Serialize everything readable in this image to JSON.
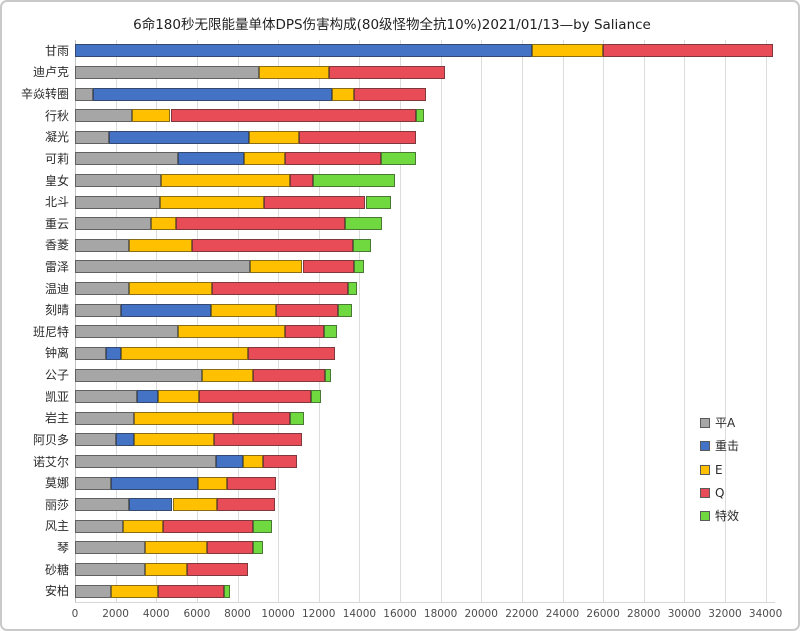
{
  "title": "6命180秒无限能量单体DPS伤害构成(80级怪物全抗10%)2021/01/13—by Saliance",
  "colors": {
    "normal_attack": "#a6a6a6",
    "charged_attack": "#4472c4",
    "skill": "#ffc000",
    "burst": "#e84c56",
    "special": "#70d93f",
    "gridline": "#dcdcdc",
    "title_text": "#1f1f1f",
    "tick_text": "#4d4d4d"
  },
  "chart_data": {
    "type": "bar",
    "orientation": "horizontal",
    "stacked": true,
    "title": "6命180秒无限能量单体DPS伤害构成(80级怪物全抗10%)2021/01/13—by Saliance",
    "xlabel": "",
    "ylabel": "",
    "xlim": [
      0,
      35300
    ],
    "xticks": [
      0,
      2000,
      4000,
      6000,
      8000,
      10000,
      12000,
      14000,
      16000,
      18000,
      20000,
      22000,
      24000,
      26000,
      28000,
      30000,
      32000,
      34000
    ],
    "grid": true,
    "legend_position": "right",
    "categories": [
      "甘雨",
      "迪卢克",
      "辛焱转圈",
      "行秋",
      "凝光",
      "可莉",
      "皇女",
      "北斗",
      "重云",
      "香菱",
      "雷泽",
      "温迪",
      "刻晴",
      "班尼特",
      "钟离",
      "公子",
      "凯亚",
      "岩主",
      "阿贝多",
      "诺艾尔",
      "莫娜",
      "丽莎",
      "风主",
      "琴",
      "砂糖",
      "安柏"
    ],
    "series": [
      {
        "name": "平A",
        "color": "#a6a6a6",
        "values": [
          0,
          9050,
          900,
          2800,
          1650,
          5050,
          4250,
          4200,
          3750,
          2650,
          8600,
          2650,
          2250,
          5050,
          1500,
          6250,
          3050,
          2900,
          2000,
          6950,
          1750,
          2650,
          2350,
          3450,
          3450,
          1750
        ]
      },
      {
        "name": "重击",
        "color": "#4472c4",
        "values": [
          22500,
          0,
          11750,
          0,
          6900,
          3250,
          0,
          0,
          0,
          0,
          0,
          0,
          4450,
          0,
          750,
          0,
          1050,
          0,
          900,
          1300,
          4300,
          2150,
          0,
          0,
          0,
          0
        ]
      },
      {
        "name": "E",
        "color": "#ffc000",
        "values": [
          3500,
          3450,
          1100,
          1900,
          2500,
          2050,
          6350,
          5100,
          1200,
          3100,
          2600,
          4100,
          3200,
          5300,
          6250,
          2500,
          2000,
          4900,
          3950,
          1000,
          1450,
          2200,
          2000,
          3050,
          2050,
          2350
        ]
      },
      {
        "name": "Q",
        "color": "#e84c56",
        "values": [
          8350,
          5700,
          3550,
          12100,
          5750,
          4700,
          1100,
          5000,
          8350,
          7950,
          2550,
          6700,
          3050,
          1900,
          4300,
          3550,
          5500,
          2800,
          4350,
          1700,
          2400,
          2850,
          4400,
          2250,
          3000,
          3250
        ]
      },
      {
        "name": "特效",
        "color": "#70d93f",
        "values": [
          0,
          0,
          0,
          400,
          0,
          1750,
          4050,
          1250,
          1800,
          850,
          500,
          450,
          700,
          650,
          0,
          300,
          500,
          700,
          0,
          0,
          0,
          0,
          950,
          500,
          0,
          300
        ]
      }
    ]
  },
  "legend": {
    "items": [
      {
        "label": "平A",
        "color": "#a6a6a6"
      },
      {
        "label": "重击",
        "color": "#4472c4"
      },
      {
        "label": "E",
        "color": "#ffc000"
      },
      {
        "label": "Q",
        "color": "#e84c56"
      },
      {
        "label": "特效",
        "color": "#70d93f"
      }
    ]
  }
}
